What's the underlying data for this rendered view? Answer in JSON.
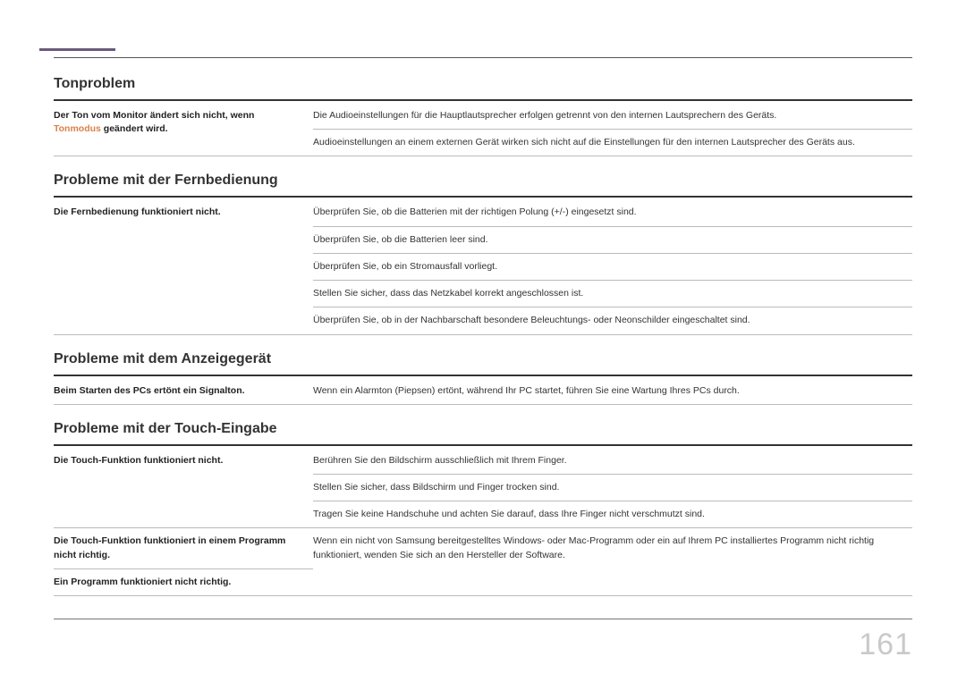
{
  "pageNumber": "161",
  "sections": [
    {
      "heading": "Tonproblem",
      "rows": [
        {
          "problem_pre": "Der Ton vom Monitor ändert sich nicht, wenn ",
          "problem_hl": "Tonmodus",
          "problem_post": " geändert wird.",
          "solution": "Die Audioeinstellungen für die Hauptlautsprecher erfolgen getrennt von den internen Lautsprechern des Geräts.",
          "rowspan": 2
        },
        {
          "solution": "Audioeinstellungen an einem externen Gerät wirken sich nicht auf die Einstellungen für den internen Lautsprecher des Geräts aus."
        }
      ]
    },
    {
      "heading": "Probleme mit der Fernbedienung",
      "rows": [
        {
          "problem": "Die Fernbedienung funktioniert nicht.",
          "solution": "Überprüfen Sie, ob die Batterien mit der richtigen Polung (+/-) eingesetzt sind.",
          "rowspan": 5
        },
        {
          "solution": "Überprüfen Sie, ob die Batterien leer sind."
        },
        {
          "solution": "Überprüfen Sie, ob ein Stromausfall vorliegt."
        },
        {
          "solution": "Stellen Sie sicher, dass das Netzkabel korrekt angeschlossen ist."
        },
        {
          "solution": "Überprüfen Sie, ob in der Nachbarschaft besondere Beleuchtungs- oder Neonschilder eingeschaltet sind."
        }
      ]
    },
    {
      "heading": "Probleme mit dem Anzeigegerät",
      "rows": [
        {
          "problem": "Beim Starten des PCs ertönt ein Signalton.",
          "solution": "Wenn ein Alarmton (Piepsen) ertönt, während Ihr PC startet, führen Sie eine Wartung Ihres PCs durch."
        }
      ]
    },
    {
      "heading": "Probleme mit der Touch-Eingabe",
      "rows": [
        {
          "problem": "Die Touch-Funktion funktioniert nicht.",
          "solution": "Berühren Sie den Bildschirm ausschließlich mit Ihrem Finger.",
          "rowspan": 3
        },
        {
          "solution": "Stellen Sie sicher, dass Bildschirm und Finger trocken sind."
        },
        {
          "solution": "Tragen Sie keine Handschuhe und achten Sie darauf, dass Ihre Finger nicht verschmutzt sind."
        },
        {
          "problem": "Die Touch-Funktion funktioniert in einem Programm nicht richtig.",
          "solution": "Wenn ein nicht von Samsung bereitgestelltes Windows- oder Mac-Programm oder ein auf Ihrem PC installiertes Programm nicht richtig funktioniert, wenden Sie sich an den Hersteller der Software.",
          "rowspan": 2,
          "share_solution": true
        },
        {
          "problem": "Ein Programm funktioniert nicht richtig."
        }
      ]
    }
  ]
}
